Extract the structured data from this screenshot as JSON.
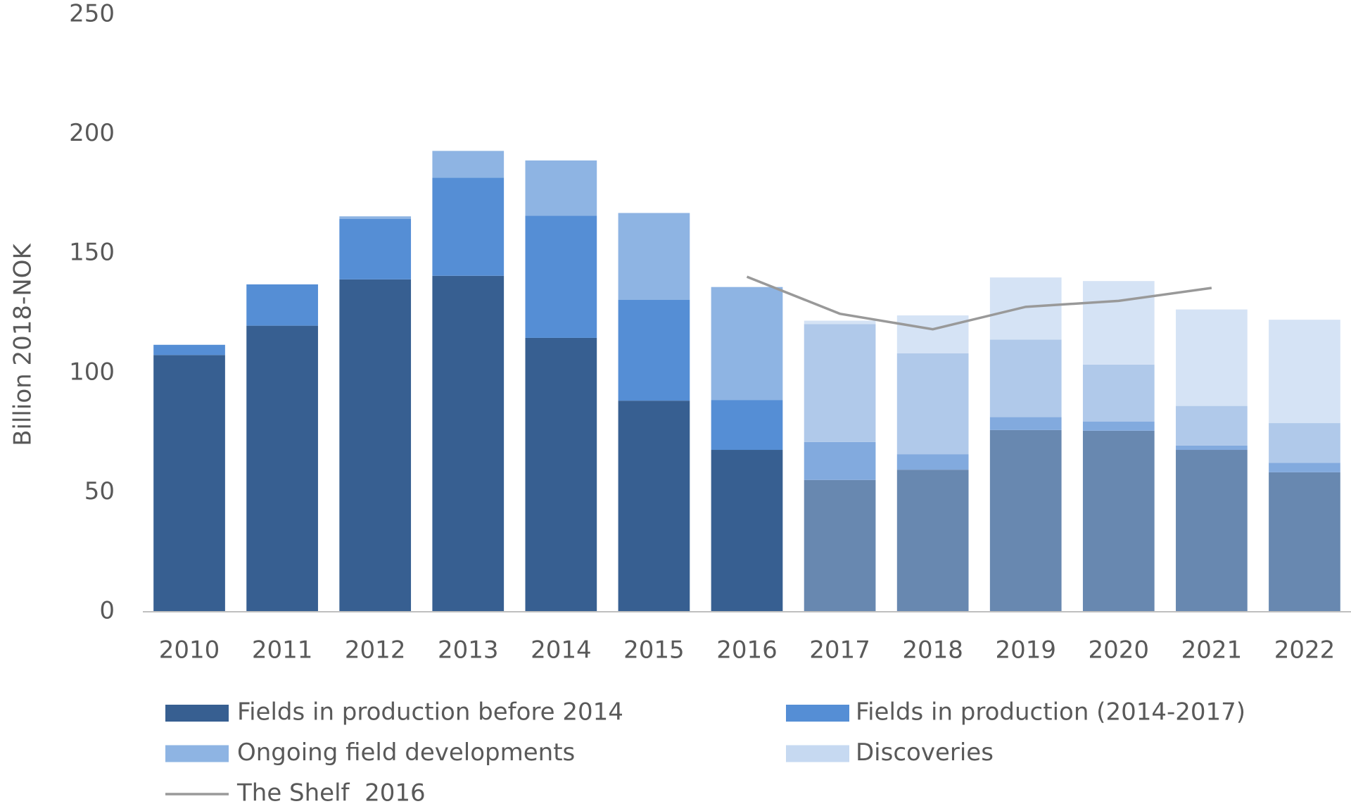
{
  "chart_data": {
    "type": "bar",
    "stacked": true,
    "y_label": "Billion 2018-NOK",
    "categories": [
      "2010",
      "2011",
      "2012",
      "2013",
      "2014",
      "2015",
      "2016",
      "2017",
      "2018",
      "2019",
      "2020",
      "2021",
      "2022"
    ],
    "ylim": [
      0,
      250
    ],
    "yticks": [
      0,
      50,
      100,
      150,
      200,
      250
    ],
    "grid": false,
    "legend": "bottom",
    "series": [
      {
        "name": "Fields in production before 2014",
        "type": "bar",
        "color": "#375f91",
        "colors": [
          "#375f91",
          "#375f91",
          "#375f91",
          "#375f91",
          "#375f91",
          "#375f91",
          "#375f91",
          "#6888b0",
          "#6888b0",
          "#6888b0",
          "#6888b0",
          "#6888b0",
          "#6888b0"
        ],
        "values": [
          107.5,
          119.8,
          139.2,
          140.7,
          114.7,
          88.4,
          67.8,
          55.2,
          59.5,
          76.1,
          75.8,
          67.8,
          58.4
        ]
      },
      {
        "name": "Fields in production (2014-2017)",
        "type": "bar",
        "color": "#558ed5",
        "colors": [
          "#558ed5",
          "#558ed5",
          "#558ed5",
          "#558ed5",
          "#558ed5",
          "#558ed5",
          "#558ed5",
          "#82aade",
          "#82aade",
          "#82aade",
          "#82aade",
          "#82aade",
          "#82aade"
        ],
        "values": [
          4.3,
          17.3,
          25.3,
          41.1,
          51.2,
          42.2,
          20.9,
          15.9,
          6.5,
          5.4,
          3.9,
          1.8,
          4.0
        ]
      },
      {
        "name": "Ongoing field developments",
        "type": "bar",
        "color": "#8eb4e3",
        "colors": [
          "#8eb4e3",
          "#8eb4e3",
          "#8eb4e3",
          "#8eb4e3",
          "#8eb4e3",
          "#8eb4e3",
          "#8eb4e3",
          "#b0c9ea",
          "#b0c9ea",
          "#b0c9ea",
          "#b0c9ea",
          "#b0c9ea",
          "#b0c9ea"
        ],
        "values": [
          0,
          0,
          1.1,
          11.2,
          23.1,
          36.4,
          47.3,
          49.4,
          42.2,
          32.5,
          23.8,
          16.6,
          16.6
        ]
      },
      {
        "name": "Discoveries",
        "type": "bar",
        "color": "#c6d9f1",
        "colors": [
          "#c6d9f1",
          "#c6d9f1",
          "#c6d9f1",
          "#c6d9f1",
          "#c6d9f1",
          "#c6d9f1",
          "#c6d9f1",
          "#d5e3f5",
          "#d5e3f5",
          "#d5e3f5",
          "#d5e3f5",
          "#d5e3f5",
          "#d5e3f5"
        ],
        "values": [
          0,
          0,
          0,
          0,
          0,
          0,
          0,
          1.4,
          15.9,
          26.0,
          35.0,
          40.4,
          43.3
        ]
      },
      {
        "name": "The Shelf  2016",
        "type": "line",
        "color": "#999999",
        "values": [
          null,
          null,
          null,
          null,
          null,
          null,
          140.3,
          124.8,
          118.3,
          127.7,
          130.2,
          135.6,
          null
        ]
      }
    ]
  }
}
